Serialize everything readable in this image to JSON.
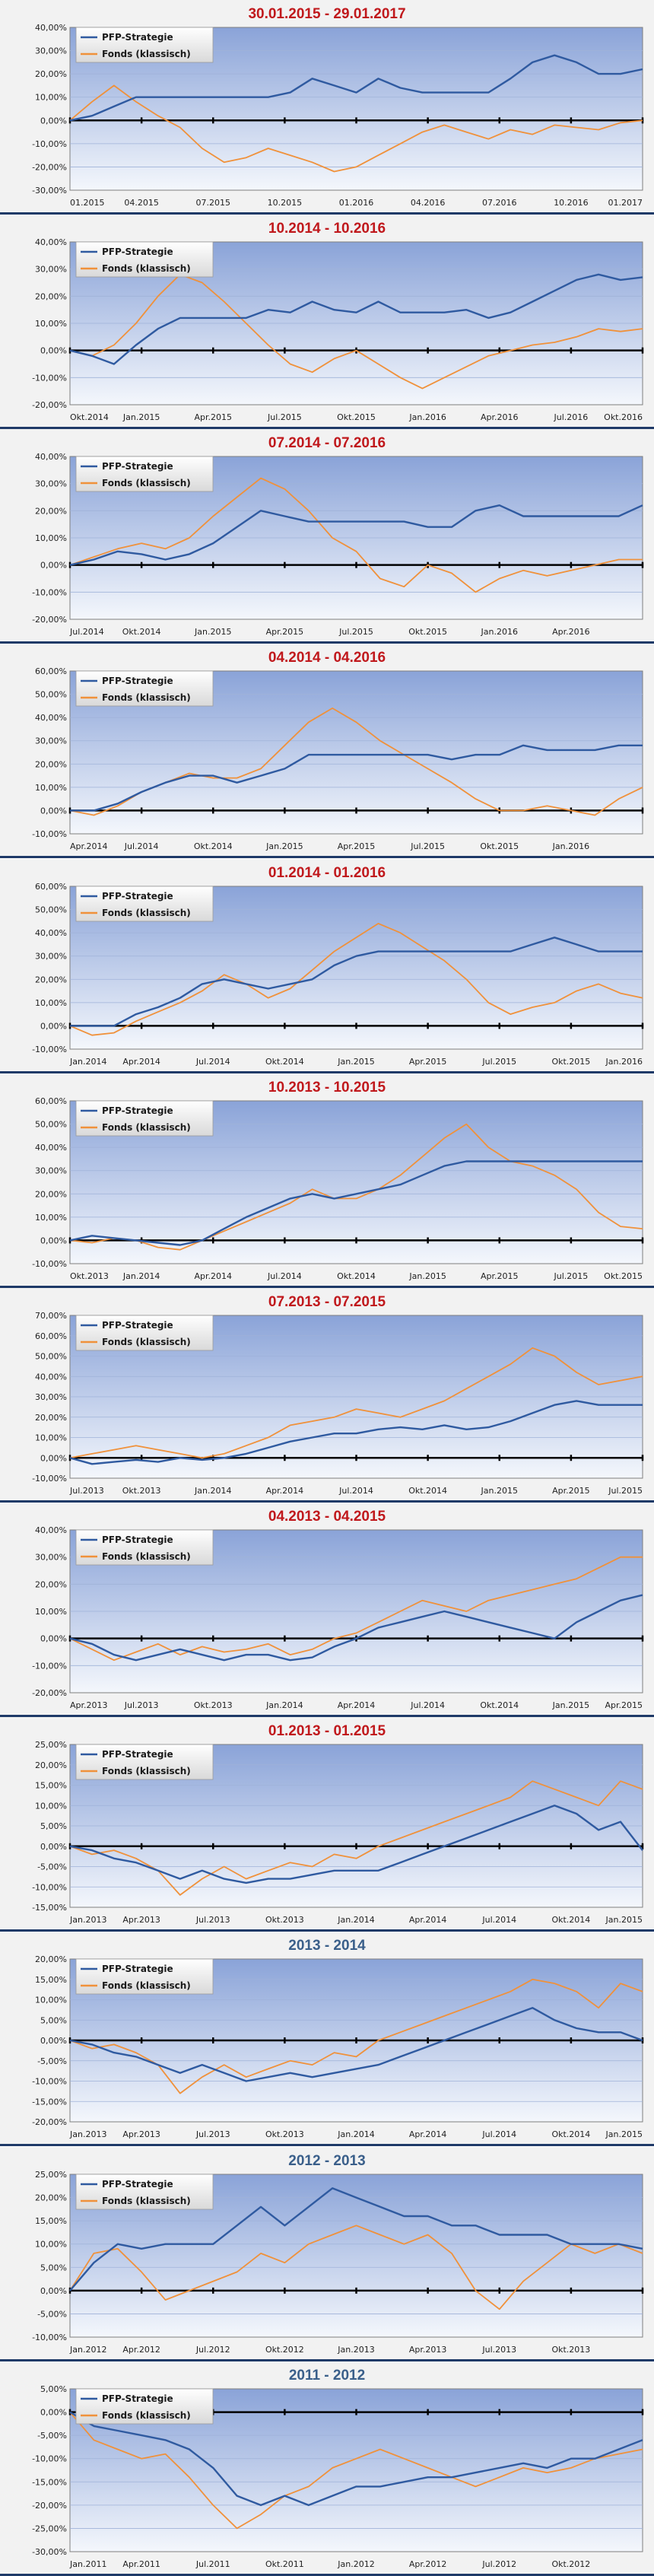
{
  "legend": {
    "series_names": [
      "PFP-Strategie",
      "Fonds (klassisch)"
    ],
    "colors": {
      "pfp": "#2f5aa0",
      "fonds": "#f0913a"
    }
  },
  "chart_data": [
    {
      "type": "line",
      "title": "30.01.2015 - 29.01.2017",
      "title_color": "#c0181c",
      "ylim": [
        -30,
        40
      ],
      "ytick_step": 10,
      "yticks": [
        "40,00%",
        "30,00%",
        "20,00%",
        "10,00%",
        "0,00%",
        "-10,00%",
        "-20,00%",
        "-30,00%"
      ],
      "xticks": [
        "01.2015",
        "04.2015",
        "07.2015",
        "10.2015",
        "01.2016",
        "04.2016",
        "07.2016",
        "10.2016",
        "01.2017"
      ],
      "series": [
        {
          "name": "PFP-Strategie",
          "values": [
            0,
            2,
            6,
            10,
            10,
            10,
            10,
            10,
            10,
            10,
            12,
            18,
            15,
            12,
            18,
            14,
            12,
            12,
            12,
            12,
            18,
            25,
            28,
            25,
            20,
            20,
            22
          ]
        },
        {
          "name": "Fonds (klassisch)",
          "values": [
            0,
            8,
            15,
            8,
            2,
            -3,
            -12,
            -18,
            -16,
            -12,
            -15,
            -18,
            -22,
            -20,
            -15,
            -10,
            -5,
            -2,
            -5,
            -8,
            -4,
            -6,
            -2,
            -3,
            -4,
            -1,
            0
          ]
        }
      ]
    },
    {
      "type": "line",
      "title": "10.2014 - 10.2016",
      "title_color": "#c0181c",
      "ylim": [
        -20,
        40
      ],
      "ytick_step": 10,
      "yticks": [
        "40,00%",
        "30,00%",
        "20,00%",
        "10,00%",
        "0,00%",
        "-10,00%",
        "-20,00%"
      ],
      "xticks": [
        "Okt.2014",
        "Jan.2015",
        "Apr.2015",
        "Jul.2015",
        "Okt.2015",
        "Jan.2016",
        "Apr.2016",
        "Jul.2016",
        "Okt.2016"
      ],
      "series": [
        {
          "name": "PFP-Strategie",
          "values": [
            0,
            -2,
            -5,
            2,
            8,
            12,
            12,
            12,
            12,
            15,
            14,
            18,
            15,
            14,
            18,
            14,
            14,
            14,
            15,
            12,
            14,
            18,
            22,
            26,
            28,
            26,
            27
          ]
        },
        {
          "name": "Fonds (klassisch)",
          "values": [
            0,
            -2,
            2,
            10,
            20,
            28,
            25,
            18,
            10,
            2,
            -5,
            -8,
            -3,
            0,
            -5,
            -10,
            -14,
            -10,
            -6,
            -2,
            0,
            2,
            3,
            5,
            8,
            7,
            8
          ]
        }
      ]
    },
    {
      "type": "line",
      "title": "07.2014 - 07.2016",
      "title_color": "#c0181c",
      "ylim": [
        -20,
        40
      ],
      "ytick_step": 10,
      "yticks": [
        "40,00%",
        "30,00%",
        "20,00%",
        "10,00%",
        "0,00%",
        "-10,00%",
        "-20,00%"
      ],
      "xticks": [
        "Jul.2014",
        "Okt.2014",
        "Jan.2015",
        "Apr.2015",
        "Jul.2015",
        "Okt.2015",
        "Jan.2016",
        "Apr.2016"
      ],
      "series": [
        {
          "name": "PFP-Strategie",
          "values": [
            0,
            2,
            5,
            4,
            2,
            4,
            8,
            14,
            20,
            18,
            16,
            16,
            16,
            16,
            16,
            14,
            14,
            20,
            22,
            18,
            18,
            18,
            18,
            18,
            22
          ]
        },
        {
          "name": "Fonds (klassisch)",
          "values": [
            0,
            3,
            6,
            8,
            6,
            10,
            18,
            25,
            32,
            28,
            20,
            10,
            5,
            -5,
            -8,
            0,
            -3,
            -10,
            -5,
            -2,
            -4,
            -2,
            0,
            2,
            2
          ]
        }
      ]
    },
    {
      "type": "line",
      "title": "04.2014 - 04.2016",
      "title_color": "#c0181c",
      "ylim": [
        -10,
        60
      ],
      "ytick_step": 10,
      "yticks": [
        "60,00%",
        "50,00%",
        "40,00%",
        "30,00%",
        "20,00%",
        "10,00%",
        "0,00%",
        "-10,00%"
      ],
      "xticks": [
        "Apr.2014",
        "Jul.2014",
        "Okt.2014",
        "Jan.2015",
        "Apr.2015",
        "Jul.2015",
        "Okt.2015",
        "Jan.2016"
      ],
      "series": [
        {
          "name": "PFP-Strategie",
          "values": [
            0,
            0,
            3,
            8,
            12,
            15,
            15,
            12,
            15,
            18,
            24,
            24,
            24,
            24,
            24,
            24,
            22,
            24,
            24,
            28,
            26,
            26,
            26,
            28,
            28
          ]
        },
        {
          "name": "Fonds (klassisch)",
          "values": [
            0,
            -2,
            2,
            8,
            12,
            16,
            14,
            14,
            18,
            28,
            38,
            44,
            38,
            30,
            24,
            18,
            12,
            5,
            0,
            0,
            2,
            0,
            -2,
            5,
            10
          ]
        }
      ]
    },
    {
      "type": "line",
      "title": "01.2014 - 01.2016",
      "title_color": "#c0181c",
      "ylim": [
        -10,
        60
      ],
      "ytick_step": 10,
      "yticks": [
        "60,00%",
        "50,00%",
        "40,00%",
        "30,00%",
        "20,00%",
        "10,00%",
        "0,00%",
        "-10,00%"
      ],
      "xticks": [
        "Jan.2014",
        "Apr.2014",
        "Jul.2014",
        "Okt.2014",
        "Jan.2015",
        "Apr.2015",
        "Jul.2015",
        "Okt.2015",
        "Jan.2016"
      ],
      "series": [
        {
          "name": "PFP-Strategie",
          "values": [
            0,
            0,
            0,
            5,
            8,
            12,
            18,
            20,
            18,
            16,
            18,
            20,
            26,
            30,
            32,
            32,
            32,
            32,
            32,
            32,
            32,
            35,
            38,
            35,
            32,
            32,
            32
          ]
        },
        {
          "name": "Fonds (klassisch)",
          "values": [
            0,
            -4,
            -3,
            2,
            6,
            10,
            15,
            22,
            18,
            12,
            16,
            24,
            32,
            38,
            44,
            40,
            34,
            28,
            20,
            10,
            5,
            8,
            10,
            15,
            18,
            14,
            12
          ]
        }
      ]
    },
    {
      "type": "line",
      "title": "10.2013 - 10.2015",
      "title_color": "#c0181c",
      "ylim": [
        -10,
        60
      ],
      "ytick_step": 10,
      "yticks": [
        "60,00%",
        "50,00%",
        "40,00%",
        "30,00%",
        "20,00%",
        "10,00%",
        "0,00%",
        "-10,00%"
      ],
      "xticks": [
        "Okt.2013",
        "Jan.2014",
        "Apr.2014",
        "Jul.2014",
        "Okt.2014",
        "Jan.2015",
        "Apr.2015",
        "Jul.2015",
        "Okt.2015"
      ],
      "series": [
        {
          "name": "PFP-Strategie",
          "values": [
            0,
            2,
            1,
            0,
            -1,
            -2,
            0,
            5,
            10,
            14,
            18,
            20,
            18,
            20,
            22,
            24,
            28,
            32,
            34,
            34,
            34,
            34,
            34,
            34,
            34,
            34,
            34
          ]
        },
        {
          "name": "Fonds (klassisch)",
          "values": [
            0,
            -1,
            1,
            0,
            -3,
            -4,
            0,
            4,
            8,
            12,
            16,
            22,
            18,
            18,
            22,
            28,
            36,
            44,
            50,
            40,
            34,
            32,
            28,
            22,
            12,
            6,
            5
          ]
        }
      ]
    },
    {
      "type": "line",
      "title": "07.2013 - 07.2015",
      "title_color": "#c0181c",
      "ylim": [
        -10,
        70
      ],
      "ytick_step": 10,
      "yticks": [
        "70,00%",
        "60,00%",
        "50,00%",
        "40,00%",
        "30,00%",
        "20,00%",
        "10,00%",
        "0,00%",
        "-10,00%"
      ],
      "xticks": [
        "Jul.2013",
        "Okt.2013",
        "Jan.2014",
        "Apr.2014",
        "Jul.2014",
        "Okt.2014",
        "Jan.2015",
        "Apr.2015",
        "Jul.2015"
      ],
      "series": [
        {
          "name": "PFP-Strategie",
          "values": [
            0,
            -3,
            -2,
            -1,
            -2,
            0,
            -1,
            0,
            2,
            5,
            8,
            10,
            12,
            12,
            14,
            15,
            14,
            16,
            14,
            15,
            18,
            22,
            26,
            28,
            26,
            26,
            26
          ]
        },
        {
          "name": "Fonds (klassisch)",
          "values": [
            0,
            2,
            4,
            6,
            4,
            2,
            0,
            2,
            6,
            10,
            16,
            18,
            20,
            24,
            22,
            20,
            24,
            28,
            34,
            40,
            46,
            54,
            50,
            42,
            36,
            38,
            40
          ]
        }
      ]
    },
    {
      "type": "line",
      "title": "04.2013 - 04.2015",
      "title_color": "#c0181c",
      "ylim": [
        -20,
        40
      ],
      "ytick_step": 10,
      "yticks": [
        "40,00%",
        "30,00%",
        "20,00%",
        "10,00%",
        "0,00%",
        "-10,00%",
        "-20,00%"
      ],
      "xticks": [
        "Apr.2013",
        "Jul.2013",
        "Okt.2013",
        "Jan.2014",
        "Apr.2014",
        "Jul.2014",
        "Okt.2014",
        "Jan.2015",
        "Apr.2015"
      ],
      "series": [
        {
          "name": "PFP-Strategie",
          "values": [
            0,
            -2,
            -6,
            -8,
            -6,
            -4,
            -6,
            -8,
            -6,
            -6,
            -8,
            -7,
            -3,
            0,
            4,
            6,
            8,
            10,
            8,
            6,
            4,
            2,
            0,
            6,
            10,
            14,
            16
          ]
        },
        {
          "name": "Fonds (klassisch)",
          "values": [
            0,
            -4,
            -8,
            -5,
            -2,
            -6,
            -3,
            -5,
            -4,
            -2,
            -6,
            -4,
            0,
            2,
            6,
            10,
            14,
            12,
            10,
            14,
            16,
            18,
            20,
            22,
            26,
            30,
            30
          ]
        }
      ]
    },
    {
      "type": "line",
      "title": "01.2013 - 01.2015",
      "title_color": "#c0181c",
      "ylim": [
        -15,
        25
      ],
      "ytick_step": 5,
      "yticks": [
        "25,00%",
        "20,00%",
        "15,00%",
        "10,00%",
        "5,00%",
        "0,00%",
        "-5,00%",
        "-10,00%",
        "-15,00%"
      ],
      "xticks": [
        "Jan.2013",
        "Apr.2013",
        "Jul.2013",
        "Okt.2013",
        "Jan.2014",
        "Apr.2014",
        "Jul.2014",
        "Okt.2014",
        "Jan.2015"
      ],
      "series": [
        {
          "name": "PFP-Strategie",
          "values": [
            0,
            -1,
            -3,
            -4,
            -6,
            -8,
            -6,
            -8,
            -9,
            -8,
            -8,
            -7,
            -6,
            -6,
            -6,
            -4,
            -2,
            0,
            2,
            4,
            6,
            8,
            10,
            8,
            4,
            6,
            -1
          ]
        },
        {
          "name": "Fonds (klassisch)",
          "values": [
            0,
            -2,
            -1,
            -3,
            -6,
            -12,
            -8,
            -5,
            -8,
            -6,
            -4,
            -5,
            -2,
            -3,
            0,
            2,
            4,
            6,
            8,
            10,
            12,
            16,
            14,
            12,
            10,
            16,
            14
          ]
        }
      ]
    },
    {
      "type": "line",
      "title": "2013 - 2014",
      "title_color": "#3a5f8a",
      "ylim": [
        -20,
        20
      ],
      "ytick_step": 5,
      "yticks": [
        "20,00%",
        "15,00%",
        "10,00%",
        "5,00%",
        "0,00%",
        "-5,00%",
        "-10,00%",
        "-15,00%",
        "-20,00%"
      ],
      "xticks": [
        "Jan.2013",
        "Apr.2013",
        "Jul.2013",
        "Okt.2013",
        "Jan.2014",
        "Apr.2014",
        "Jul.2014",
        "Okt.2014",
        "Jan.2015"
      ],
      "series": [
        {
          "name": "PFP-Strategie",
          "values": [
            0,
            -1,
            -3,
            -4,
            -6,
            -8,
            -6,
            -8,
            -10,
            -9,
            -8,
            -9,
            -8,
            -7,
            -6,
            -4,
            -2,
            0,
            2,
            4,
            6,
            8,
            5,
            3,
            2,
            2,
            0
          ]
        },
        {
          "name": "Fonds (klassisch)",
          "values": [
            0,
            -2,
            -1,
            -3,
            -6,
            -13,
            -9,
            -6,
            -9,
            -7,
            -5,
            -6,
            -3,
            -4,
            0,
            2,
            4,
            6,
            8,
            10,
            12,
            15,
            14,
            12,
            8,
            14,
            12
          ]
        }
      ]
    },
    {
      "type": "line",
      "title": "2012 - 2013",
      "title_color": "#3a5f8a",
      "ylim": [
        -10,
        25
      ],
      "ytick_step": 5,
      "yticks": [
        "25,00%",
        "20,00%",
        "15,00%",
        "10,00%",
        "5,00%",
        "0,00%",
        "-5,00%",
        "-10,00%"
      ],
      "xticks": [
        "Jan.2012",
        "Apr.2012",
        "Jul.2012",
        "Okt.2012",
        "Jan.2013",
        "Apr.2013",
        "Jul.2013",
        "Okt.2013"
      ],
      "series": [
        {
          "name": "PFP-Strategie",
          "values": [
            0,
            6,
            10,
            9,
            10,
            10,
            10,
            14,
            18,
            14,
            18,
            22,
            20,
            18,
            16,
            16,
            14,
            14,
            12,
            12,
            12,
            10,
            10,
            10,
            9
          ]
        },
        {
          "name": "Fonds (klassisch)",
          "values": [
            0,
            8,
            9,
            4,
            -2,
            0,
            2,
            4,
            8,
            6,
            10,
            12,
            14,
            12,
            10,
            12,
            8,
            0,
            -4,
            2,
            6,
            10,
            8,
            10,
            8
          ]
        }
      ]
    },
    {
      "type": "line",
      "title": "2011 - 2012",
      "title_color": "#3a5f8a",
      "ylim": [
        -30,
        5
      ],
      "ytick_step": 5,
      "yticks": [
        "5,00%",
        "0,00%",
        "-5,00%",
        "-10,00%",
        "-15,00%",
        "-20,00%",
        "-25,00%",
        "-30,00%"
      ],
      "xticks": [
        "Jan.2011",
        "Apr.2011",
        "Jul.2011",
        "Okt.2011",
        "Jan.2012",
        "Apr.2012",
        "Jul.2012",
        "Okt.2012"
      ],
      "series": [
        {
          "name": "PFP-Strategie",
          "values": [
            0,
            -3,
            -4,
            -5,
            -6,
            -8,
            -12,
            -18,
            -20,
            -18,
            -20,
            -18,
            -16,
            -16,
            -15,
            -14,
            -14,
            -13,
            -12,
            -11,
            -12,
            -10,
            -10,
            -8,
            -6
          ]
        },
        {
          "name": "Fonds (klassisch)",
          "values": [
            0,
            -6,
            -8,
            -10,
            -9,
            -14,
            -20,
            -25,
            -22,
            -18,
            -16,
            -12,
            -10,
            -8,
            -10,
            -12,
            -14,
            -16,
            -14,
            -12,
            -13,
            -12,
            -10,
            -9,
            -8
          ]
        }
      ]
    }
  ]
}
